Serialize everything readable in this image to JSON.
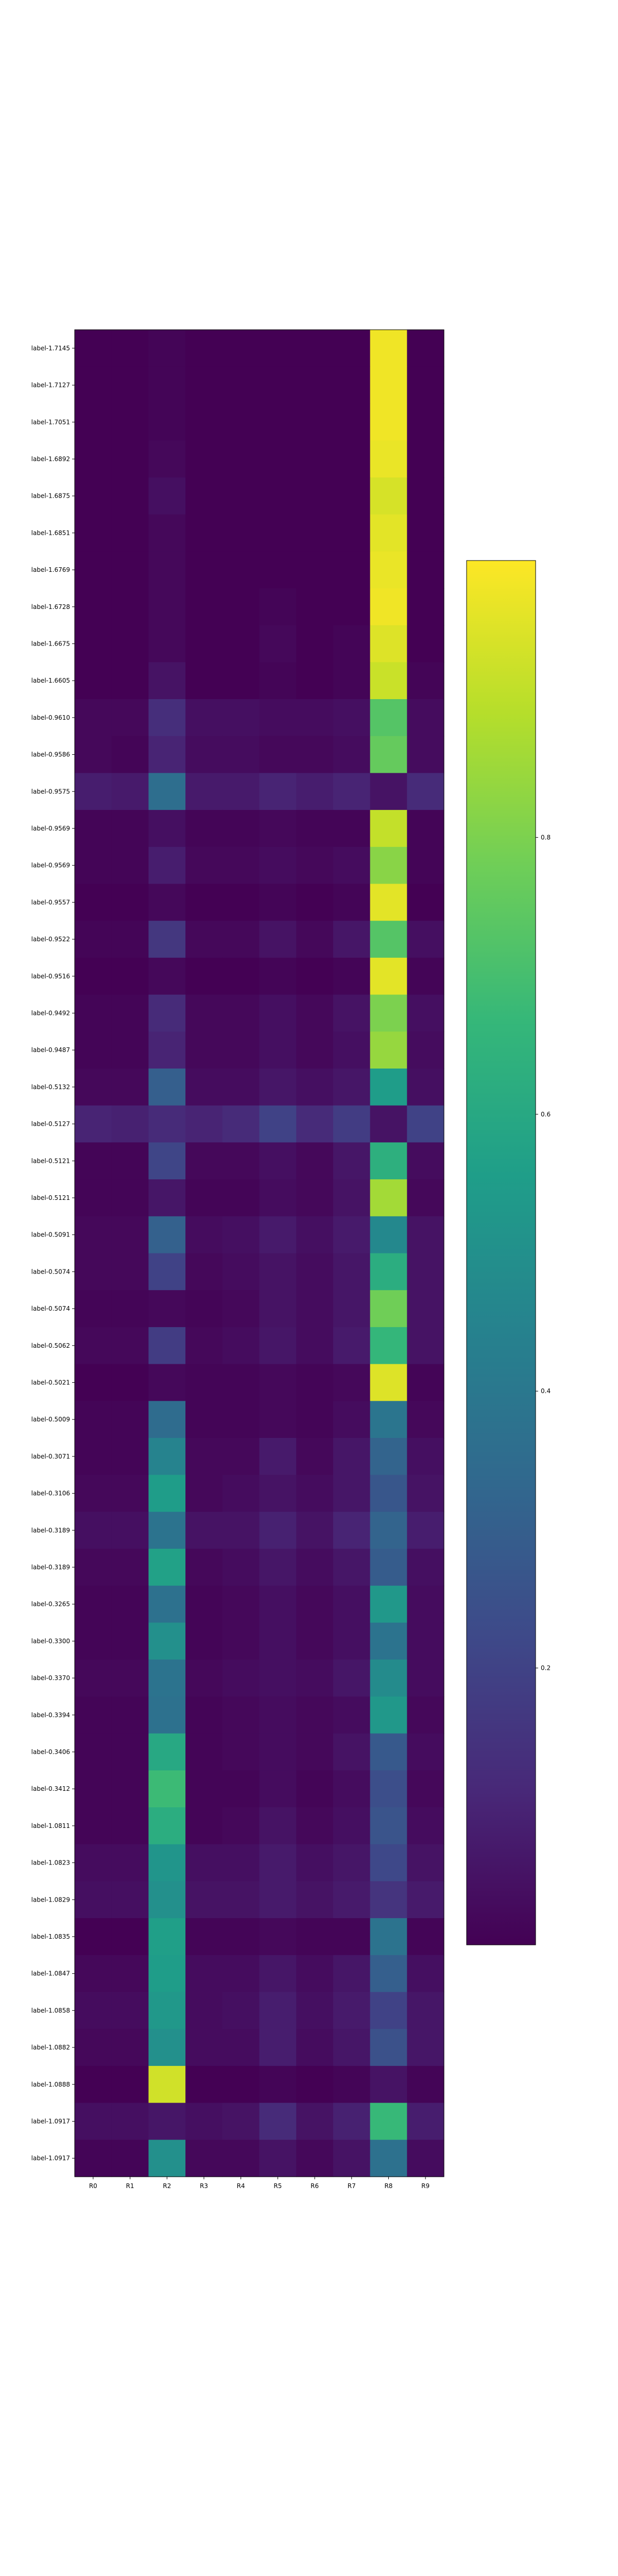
{
  "chart_data": {
    "type": "heatmap",
    "title": "",
    "xlabel": "",
    "ylabel": "",
    "columns": [
      "R0",
      "R1",
      "R2",
      "R3",
      "R4",
      "R5",
      "R6",
      "R7",
      "R8",
      "R9"
    ],
    "rows": [
      "label-1.7145",
      "label-1.7127",
      "label-1.7051",
      "label-1.6892",
      "label-1.6875",
      "label-1.6851",
      "label-1.6769",
      "label-1.6728",
      "label-1.6675",
      "label-1.6605",
      "label-0.9610",
      "label-0.9586",
      "label-0.9575",
      "label-0.9569",
      "label-0.9569",
      "label-0.9557",
      "label-0.9522",
      "label-0.9516",
      "label-0.9492",
      "label-0.9487",
      "label-0.5132",
      "label-0.5127",
      "label-0.5121",
      "label-0.5121",
      "label-0.5091",
      "label-0.5074",
      "label-0.5074",
      "label-0.5062",
      "label-0.5021",
      "label-0.5009",
      "label-0.3071",
      "label-0.3106",
      "label-0.3189",
      "label-0.3189",
      "label-0.3265",
      "label-0.3300",
      "label-0.3370",
      "label-0.3394",
      "label-0.3406",
      "label-0.3412",
      "label-1.0811",
      "label-1.0823",
      "label-1.0829",
      "label-1.0835",
      "label-1.0847",
      "label-1.0858",
      "label-1.0882",
      "label-1.0888",
      "label-1.0917",
      "label-1.0917"
    ],
    "values": [
      [
        0.0,
        0.0,
        0.01,
        0.0,
        0.0,
        0.0,
        0.0,
        0.0,
        0.98,
        0.0
      ],
      [
        0.0,
        0.0,
        0.01,
        0.0,
        0.0,
        0.0,
        0.0,
        0.0,
        0.98,
        0.0
      ],
      [
        0.0,
        0.0,
        0.01,
        0.0,
        0.0,
        0.0,
        0.0,
        0.0,
        0.98,
        0.0
      ],
      [
        0.0,
        0.0,
        0.02,
        0.0,
        0.0,
        0.0,
        0.0,
        0.0,
        0.97,
        0.0
      ],
      [
        0.0,
        0.0,
        0.04,
        0.0,
        0.0,
        0.0,
        0.0,
        0.0,
        0.94,
        0.0
      ],
      [
        0.0,
        0.0,
        0.02,
        0.0,
        0.0,
        0.0,
        0.0,
        0.0,
        0.96,
        0.0
      ],
      [
        0.0,
        0.0,
        0.02,
        0.0,
        0.0,
        0.0,
        0.0,
        0.0,
        0.97,
        0.0
      ],
      [
        0.0,
        0.0,
        0.02,
        0.0,
        0.0,
        0.01,
        0.0,
        0.0,
        0.98,
        0.0
      ],
      [
        0.0,
        0.0,
        0.02,
        0.0,
        0.0,
        0.02,
        0.0,
        0.01,
        0.95,
        0.0
      ],
      [
        0.0,
        0.0,
        0.05,
        0.0,
        0.0,
        0.01,
        0.0,
        0.01,
        0.92,
        0.01
      ],
      [
        0.02,
        0.02,
        0.13,
        0.04,
        0.04,
        0.03,
        0.03,
        0.04,
        0.73,
        0.03
      ],
      [
        0.02,
        0.01,
        0.1,
        0.03,
        0.03,
        0.02,
        0.02,
        0.03,
        0.76,
        0.03
      ],
      [
        0.08,
        0.07,
        0.36,
        0.07,
        0.07,
        0.1,
        0.08,
        0.1,
        0.05,
        0.12
      ],
      [
        0.01,
        0.01,
        0.04,
        0.01,
        0.01,
        0.02,
        0.01,
        0.01,
        0.91,
        0.01
      ],
      [
        0.01,
        0.01,
        0.08,
        0.02,
        0.02,
        0.03,
        0.02,
        0.03,
        0.82,
        0.01
      ],
      [
        0.0,
        0.0,
        0.02,
        0.0,
        0.0,
        0.01,
        0.0,
        0.01,
        0.96,
        0.0
      ],
      [
        0.01,
        0.01,
        0.16,
        0.02,
        0.02,
        0.05,
        0.02,
        0.06,
        0.73,
        0.04
      ],
      [
        0.0,
        0.0,
        0.02,
        0.0,
        0.0,
        0.01,
        0.0,
        0.01,
        0.96,
        0.01
      ],
      [
        0.01,
        0.01,
        0.12,
        0.02,
        0.02,
        0.04,
        0.02,
        0.05,
        0.8,
        0.04
      ],
      [
        0.01,
        0.01,
        0.1,
        0.02,
        0.02,
        0.04,
        0.02,
        0.04,
        0.84,
        0.03
      ],
      [
        0.02,
        0.02,
        0.3,
        0.03,
        0.03,
        0.06,
        0.04,
        0.06,
        0.55,
        0.04
      ],
      [
        0.1,
        0.09,
        0.12,
        0.1,
        0.12,
        0.2,
        0.12,
        0.18,
        0.05,
        0.2
      ],
      [
        0.01,
        0.01,
        0.21,
        0.02,
        0.02,
        0.04,
        0.02,
        0.06,
        0.63,
        0.03
      ],
      [
        0.01,
        0.01,
        0.06,
        0.01,
        0.01,
        0.03,
        0.02,
        0.05,
        0.86,
        0.02
      ],
      [
        0.02,
        0.02,
        0.31,
        0.03,
        0.04,
        0.07,
        0.04,
        0.07,
        0.47,
        0.05
      ],
      [
        0.02,
        0.02,
        0.2,
        0.02,
        0.03,
        0.05,
        0.03,
        0.06,
        0.62,
        0.05
      ],
      [
        0.01,
        0.01,
        0.02,
        0.01,
        0.02,
        0.05,
        0.03,
        0.06,
        0.78,
        0.05
      ],
      [
        0.02,
        0.02,
        0.18,
        0.02,
        0.03,
        0.06,
        0.03,
        0.07,
        0.66,
        0.05
      ],
      [
        0.0,
        0.0,
        0.02,
        0.01,
        0.01,
        0.02,
        0.01,
        0.02,
        0.95,
        0.01
      ],
      [
        0.01,
        0.01,
        0.35,
        0.01,
        0.01,
        0.02,
        0.01,
        0.03,
        0.39,
        0.02
      ],
      [
        0.01,
        0.01,
        0.45,
        0.02,
        0.02,
        0.07,
        0.02,
        0.06,
        0.32,
        0.04
      ],
      [
        0.02,
        0.02,
        0.55,
        0.02,
        0.03,
        0.05,
        0.03,
        0.06,
        0.27,
        0.05
      ],
      [
        0.04,
        0.04,
        0.38,
        0.05,
        0.05,
        0.09,
        0.05,
        0.1,
        0.32,
        0.08
      ],
      [
        0.02,
        0.02,
        0.57,
        0.02,
        0.03,
        0.06,
        0.03,
        0.06,
        0.29,
        0.04
      ],
      [
        0.01,
        0.01,
        0.37,
        0.01,
        0.02,
        0.04,
        0.02,
        0.04,
        0.53,
        0.03
      ],
      [
        0.01,
        0.01,
        0.5,
        0.01,
        0.02,
        0.04,
        0.02,
        0.04,
        0.38,
        0.03
      ],
      [
        0.02,
        0.02,
        0.38,
        0.02,
        0.03,
        0.04,
        0.03,
        0.06,
        0.48,
        0.03
      ],
      [
        0.01,
        0.01,
        0.37,
        0.01,
        0.02,
        0.03,
        0.02,
        0.03,
        0.53,
        0.02
      ],
      [
        0.01,
        0.01,
        0.6,
        0.01,
        0.02,
        0.03,
        0.02,
        0.05,
        0.28,
        0.03
      ],
      [
        0.01,
        0.01,
        0.68,
        0.01,
        0.01,
        0.03,
        0.01,
        0.03,
        0.24,
        0.02
      ],
      [
        0.01,
        0.01,
        0.62,
        0.01,
        0.02,
        0.05,
        0.02,
        0.04,
        0.26,
        0.03
      ],
      [
        0.03,
        0.03,
        0.52,
        0.04,
        0.04,
        0.07,
        0.04,
        0.06,
        0.22,
        0.05
      ],
      [
        0.04,
        0.04,
        0.5,
        0.05,
        0.05,
        0.07,
        0.05,
        0.07,
        0.15,
        0.07
      ],
      [
        0.0,
        0.0,
        0.56,
        0.01,
        0.01,
        0.02,
        0.01,
        0.01,
        0.38,
        0.01
      ],
      [
        0.02,
        0.02,
        0.55,
        0.03,
        0.03,
        0.06,
        0.03,
        0.06,
        0.3,
        0.04
      ],
      [
        0.03,
        0.03,
        0.53,
        0.03,
        0.04,
        0.08,
        0.04,
        0.07,
        0.2,
        0.06
      ],
      [
        0.02,
        0.02,
        0.5,
        0.03,
        0.03,
        0.08,
        0.03,
        0.06,
        0.25,
        0.06
      ],
      [
        0.0,
        0.0,
        0.93,
        0.0,
        0.0,
        0.01,
        0.0,
        0.01,
        0.05,
        0.01
      ],
      [
        0.04,
        0.04,
        0.06,
        0.04,
        0.05,
        0.12,
        0.05,
        0.09,
        0.67,
        0.08
      ],
      [
        0.01,
        0.01,
        0.5,
        0.02,
        0.02,
        0.05,
        0.02,
        0.05,
        0.37,
        0.03
      ]
    ],
    "colormap": "viridis",
    "colorbar": {
      "vmin": 0.0,
      "vmax": 1.0,
      "ticks": [
        0.2,
        0.4,
        0.6,
        0.8
      ]
    },
    "colors": [
      "#440154",
      "#482878",
      "#3e4989",
      "#31688e",
      "#26828e",
      "#1f9e89",
      "#35b779",
      "#6ece58",
      "#b5de2b",
      "#fde725"
    ],
    "grid": false,
    "legend": "colorbar-right"
  }
}
